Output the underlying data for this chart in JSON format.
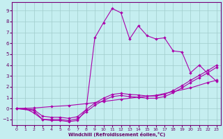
{
  "xlabel": "Windchill (Refroidissement éolien,°C)",
  "background_color": "#c5eef0",
  "grid_color": "#a0cccc",
  "line_color": "#aa00aa",
  "xlim": [
    -0.5,
    23.5
  ],
  "ylim": [
    -1.5,
    9.8
  ],
  "xticks": [
    0,
    1,
    2,
    3,
    4,
    5,
    6,
    7,
    8,
    9,
    10,
    11,
    12,
    13,
    14,
    15,
    16,
    17,
    18,
    19,
    20,
    21,
    22,
    23
  ],
  "yticks": [
    -1,
    0,
    1,
    2,
    3,
    4,
    5,
    6,
    7,
    8,
    9
  ],
  "line_main_x": [
    0,
    1,
    2,
    3,
    4,
    5,
    6,
    7,
    8,
    9,
    10,
    11,
    12,
    13,
    14,
    15,
    16,
    17,
    18,
    19,
    20,
    21,
    22,
    23
  ],
  "line_main_y": [
    0,
    0,
    -0.4,
    -1.0,
    -1.1,
    -1.1,
    -1.2,
    -1.1,
    -0.1,
    6.5,
    7.9,
    9.2,
    8.8,
    6.4,
    7.6,
    6.7,
    6.4,
    6.5,
    5.3,
    5.2,
    3.3,
    4.0,
    3.2,
    2.5
  ],
  "line_d1_x": [
    0,
    2,
    3,
    4,
    5,
    6,
    7,
    8,
    9,
    10,
    11,
    12,
    13,
    14,
    15,
    16,
    17,
    18,
    19,
    20,
    21,
    22,
    23
  ],
  "line_d1_y": [
    0,
    -0.2,
    -1.0,
    -1.0,
    -1.0,
    -1.1,
    -0.95,
    -0.3,
    0.3,
    0.75,
    1.1,
    1.2,
    1.1,
    1.05,
    0.95,
    0.95,
    1.1,
    1.45,
    1.9,
    2.4,
    2.85,
    3.3,
    3.8
  ],
  "line_d2_x": [
    0,
    2,
    3,
    4,
    5,
    6,
    7,
    8,
    9,
    10,
    11,
    12,
    13,
    14,
    15,
    16,
    17,
    18,
    19,
    20,
    21,
    22,
    23
  ],
  "line_d2_y": [
    0,
    -0.1,
    -0.7,
    -0.8,
    -0.8,
    -0.9,
    -0.75,
    -0.1,
    0.5,
    0.95,
    1.3,
    1.4,
    1.3,
    1.25,
    1.15,
    1.15,
    1.3,
    1.65,
    2.1,
    2.6,
    3.05,
    3.5,
    4.0
  ],
  "line_d3_x": [
    0,
    2,
    4,
    6,
    8,
    10,
    12,
    14,
    16,
    18,
    20,
    22,
    23
  ],
  "line_d3_y": [
    0,
    0.05,
    0.18,
    0.28,
    0.45,
    0.65,
    0.85,
    1.05,
    1.22,
    1.55,
    1.9,
    2.4,
    2.6
  ]
}
